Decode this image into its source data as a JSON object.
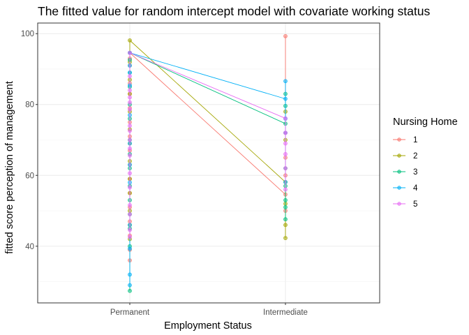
{
  "chart_data": {
    "type": "line",
    "title": "The fitted value for random intercept model with covariate working status",
    "xlabel": "Employment Status",
    "ylabel": "fitted score perception of management",
    "categories": [
      "Permanent",
      "Intermediate"
    ],
    "ylim": [
      24,
      103
    ],
    "yticks": [
      40,
      60,
      80,
      100
    ],
    "grid": true,
    "legend": {
      "title": "Nursing Home",
      "position": "right"
    },
    "series": [
      {
        "name": "1",
        "color": "#F8766D",
        "fitted": [
          94.6,
          54.6
        ],
        "points": {
          "Permanent": [
            94.6,
            93,
            91,
            86,
            83,
            79,
            75,
            71,
            67,
            63,
            59,
            55,
            51,
            47,
            43,
            39,
            36
          ],
          "Intermediate": [
            99.3,
            72,
            65,
            60,
            54.6,
            50
          ]
        }
      },
      {
        "name": "2",
        "color": "#A3A500",
        "fitted": [
          98.1,
          58.1
        ],
        "points": {
          "Permanent": [
            98.1,
            92,
            87,
            83,
            78,
            73,
            69,
            64,
            59,
            55,
            50,
            46,
            42
          ],
          "Intermediate": [
            78,
            70,
            58.1,
            52,
            46,
            42.3
          ]
        }
      },
      {
        "name": "3",
        "color": "#00BF7D",
        "fitted": [
          94.6,
          74.6
        ],
        "points": {
          "Permanent": [
            94.6,
            92.6,
            89,
            85,
            80,
            76,
            70,
            66,
            62,
            57,
            53,
            49,
            45,
            40,
            27.4
          ],
          "Intermediate": [
            83,
            79.6,
            74.6,
            62,
            57,
            53,
            51,
            47.6
          ]
        }
      },
      {
        "name": "4",
        "color": "#00B0F6",
        "fitted": [
          94.6,
          81.6
        ],
        "points": {
          "Permanent": [
            94.6,
            91,
            89,
            85.4,
            77,
            69,
            63,
            58,
            46,
            39.3,
            32,
            29
          ],
          "Intermediate": [
            86.6,
            81.6,
            76,
            72,
            58.1
          ]
        }
      },
      {
        "name": "5",
        "color": "#E76BF3",
        "fitted": [
          94.6,
          76.1
        ],
        "points": {
          "Permanent": [
            94.6,
            88,
            84,
            82,
            80.6,
            78.6,
            74,
            72.6,
            70,
            67.6,
            65.6,
            60.6,
            56.6,
            51.6,
            49,
            44.6,
            42.6
          ],
          "Intermediate": [
            76.1,
            72,
            69,
            66,
            62,
            56
          ]
        }
      }
    ]
  }
}
